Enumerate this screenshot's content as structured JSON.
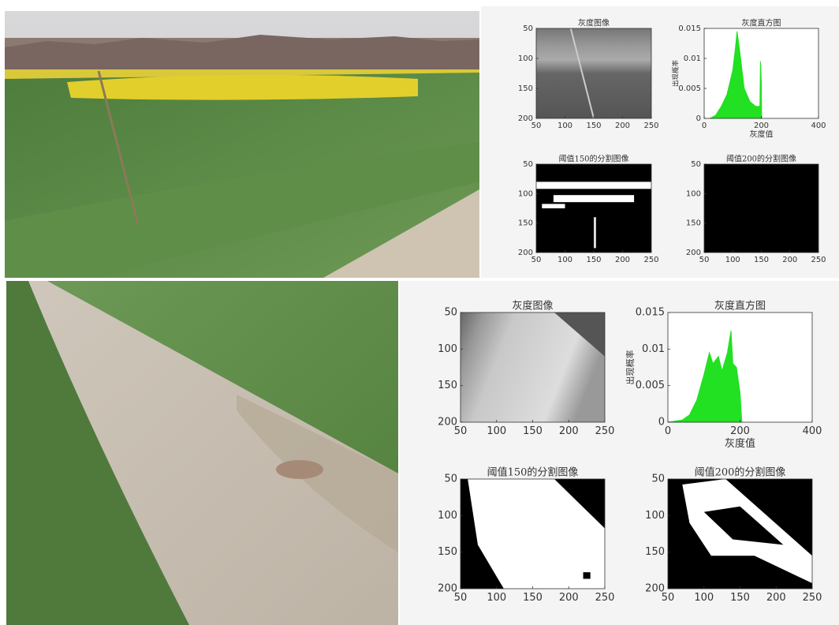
{
  "figures": [
    {
      "subplots": [
        {
          "type": "image",
          "title": "灰度图像",
          "xlim": [
            50,
            250
          ],
          "ylim": [
            50,
            200
          ],
          "xticks": [
            50,
            100,
            150,
            200,
            250
          ],
          "yticks": [
            50,
            100,
            150,
            200
          ]
        },
        {
          "type": "area",
          "title": "灰度直方图",
          "xlabel": "灰度值",
          "ylabel": "出现概率",
          "color": "#22e022",
          "x": [
            20,
            40,
            60,
            80,
            100,
            110,
            115,
            125,
            140,
            160,
            180,
            195,
            197,
            200,
            201
          ],
          "values": [
            0,
            0.0005,
            0.002,
            0.004,
            0.008,
            0.012,
            0.0145,
            0.011,
            0.005,
            0.0028,
            0.002,
            0.002,
            0.0095,
            0.006,
            0
          ],
          "xlim": [
            0,
            400
          ],
          "ylim": [
            0,
            0.015
          ],
          "xticks": [
            0,
            200,
            400
          ],
          "yticks": [
            0,
            0.005,
            0.01,
            0.015
          ]
        },
        {
          "type": "image",
          "title": "阈值150的分割图像",
          "xlim": [
            50,
            250
          ],
          "ylim": [
            50,
            200
          ],
          "xticks": [
            50,
            100,
            150,
            200,
            250
          ],
          "yticks": [
            50,
            100,
            150,
            200
          ]
        },
        {
          "type": "image",
          "title": "阈值200的分割图像",
          "xlim": [
            50,
            250
          ],
          "ylim": [
            50,
            200
          ],
          "xticks": [
            50,
            100,
            150,
            200,
            250
          ],
          "yticks": [
            50,
            100,
            150,
            200
          ]
        }
      ]
    },
    {
      "subplots": [
        {
          "type": "image",
          "title": "灰度图像",
          "xlim": [
            50,
            250
          ],
          "ylim": [
            50,
            200
          ],
          "xticks": [
            50,
            100,
            150,
            200,
            250
          ],
          "yticks": [
            50,
            100,
            150,
            200
          ]
        },
        {
          "type": "area",
          "title": "灰度直方图",
          "xlabel": "灰度值",
          "ylabel": "出现概率",
          "color": "#22e022",
          "x": [
            0,
            40,
            60,
            80,
            100,
            115,
            125,
            140,
            150,
            165,
            175,
            180,
            190,
            200,
            205
          ],
          "values": [
            0,
            0.0003,
            0.001,
            0.003,
            0.0065,
            0.0095,
            0.008,
            0.009,
            0.007,
            0.0095,
            0.0125,
            0.008,
            0.0075,
            0.004,
            0
          ],
          "xlim": [
            0,
            400
          ],
          "ylim": [
            0,
            0.015
          ],
          "xticks": [
            0,
            200,
            400
          ],
          "yticks": [
            0,
            0.005,
            0.01,
            0.015
          ]
        },
        {
          "type": "image",
          "title": "阈值150的分割图像",
          "xlim": [
            50,
            250
          ],
          "ylim": [
            50,
            200
          ],
          "xticks": [
            50,
            100,
            150,
            200,
            250
          ],
          "yticks": [
            50,
            100,
            150,
            200
          ]
        },
        {
          "type": "image",
          "title": "阈值200的分割图像",
          "xlim": [
            50,
            250
          ],
          "ylim": [
            50,
            200
          ],
          "xticks": [
            50,
            100,
            150,
            200,
            250
          ],
          "yticks": [
            50,
            100,
            150,
            200
          ]
        }
      ]
    }
  ]
}
